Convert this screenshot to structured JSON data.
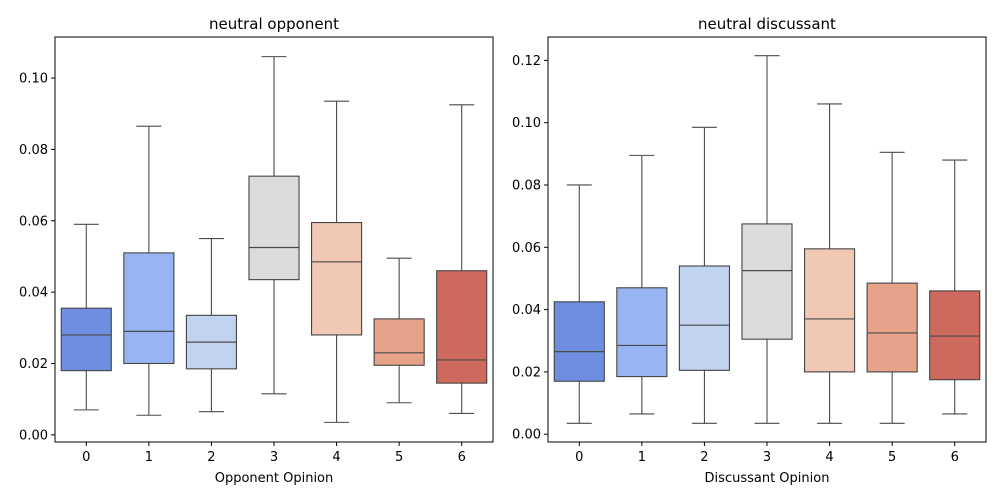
{
  "chart_data": [
    {
      "type": "box",
      "title": "neutral opponent",
      "xlabel": "Opponent Opinion",
      "ylabel": "",
      "categories": [
        "0",
        "1",
        "2",
        "3",
        "4",
        "5",
        "6"
      ],
      "ylim": [
        -0.002,
        0.1115
      ],
      "yticks": [
        0.0,
        0.02,
        0.04,
        0.06,
        0.08,
        0.1
      ],
      "ytick_labels": [
        "0.00",
        "0.02",
        "0.04",
        "0.06",
        "0.08",
        "0.10"
      ],
      "boxes": [
        {
          "whislo": 0.007,
          "q1": 0.018,
          "med": 0.028,
          "q3": 0.0355,
          "whishi": 0.059
        },
        {
          "whislo": 0.0055,
          "q1": 0.02,
          "med": 0.029,
          "q3": 0.051,
          "whishi": 0.0865
        },
        {
          "whislo": 0.0065,
          "q1": 0.0185,
          "med": 0.026,
          "q3": 0.0335,
          "whishi": 0.055
        },
        {
          "whislo": 0.0115,
          "q1": 0.0435,
          "med": 0.0525,
          "q3": 0.0725,
          "whishi": 0.106
        },
        {
          "whislo": 0.0035,
          "q1": 0.028,
          "med": 0.0485,
          "q3": 0.0595,
          "whishi": 0.0935
        },
        {
          "whislo": 0.009,
          "q1": 0.0195,
          "med": 0.023,
          "q3": 0.0325,
          "whishi": 0.0495
        },
        {
          "whislo": 0.006,
          "q1": 0.0145,
          "med": 0.021,
          "q3": 0.046,
          "whishi": 0.0925
        }
      ]
    },
    {
      "type": "box",
      "title": "neutral discussant",
      "xlabel": "Discussant Opinion",
      "ylabel": "",
      "categories": [
        "0",
        "1",
        "2",
        "3",
        "4",
        "5",
        "6"
      ],
      "ylim": [
        -0.0025,
        0.1275
      ],
      "yticks": [
        0.0,
        0.02,
        0.04,
        0.06,
        0.08,
        0.1,
        0.12
      ],
      "ytick_labels": [
        "0.00",
        "0.02",
        "0.04",
        "0.06",
        "0.08",
        "0.10",
        "0.12"
      ],
      "boxes": [
        {
          "whislo": 0.0035,
          "q1": 0.017,
          "med": 0.0265,
          "q3": 0.0425,
          "whishi": 0.08
        },
        {
          "whislo": 0.0065,
          "q1": 0.0185,
          "med": 0.0285,
          "q3": 0.047,
          "whishi": 0.0895
        },
        {
          "whislo": 0.0035,
          "q1": 0.0205,
          "med": 0.035,
          "q3": 0.054,
          "whishi": 0.0985
        },
        {
          "whislo": 0.0035,
          "q1": 0.0305,
          "med": 0.0525,
          "q3": 0.0675,
          "whishi": 0.1215
        },
        {
          "whislo": 0.0035,
          "q1": 0.02,
          "med": 0.037,
          "q3": 0.0595,
          "whishi": 0.106
        },
        {
          "whislo": 0.0035,
          "q1": 0.02,
          "med": 0.0325,
          "q3": 0.0485,
          "whishi": 0.0905
        },
        {
          "whislo": 0.0065,
          "q1": 0.0175,
          "med": 0.0315,
          "q3": 0.046,
          "whishi": 0.088
        }
      ]
    }
  ],
  "colors": [
    "#6e8fe0",
    "#98b4f2",
    "#c2d2f1",
    "#dcdcdc",
    "#f0c8b4",
    "#e7a28a",
    "#ce6a5d"
  ]
}
